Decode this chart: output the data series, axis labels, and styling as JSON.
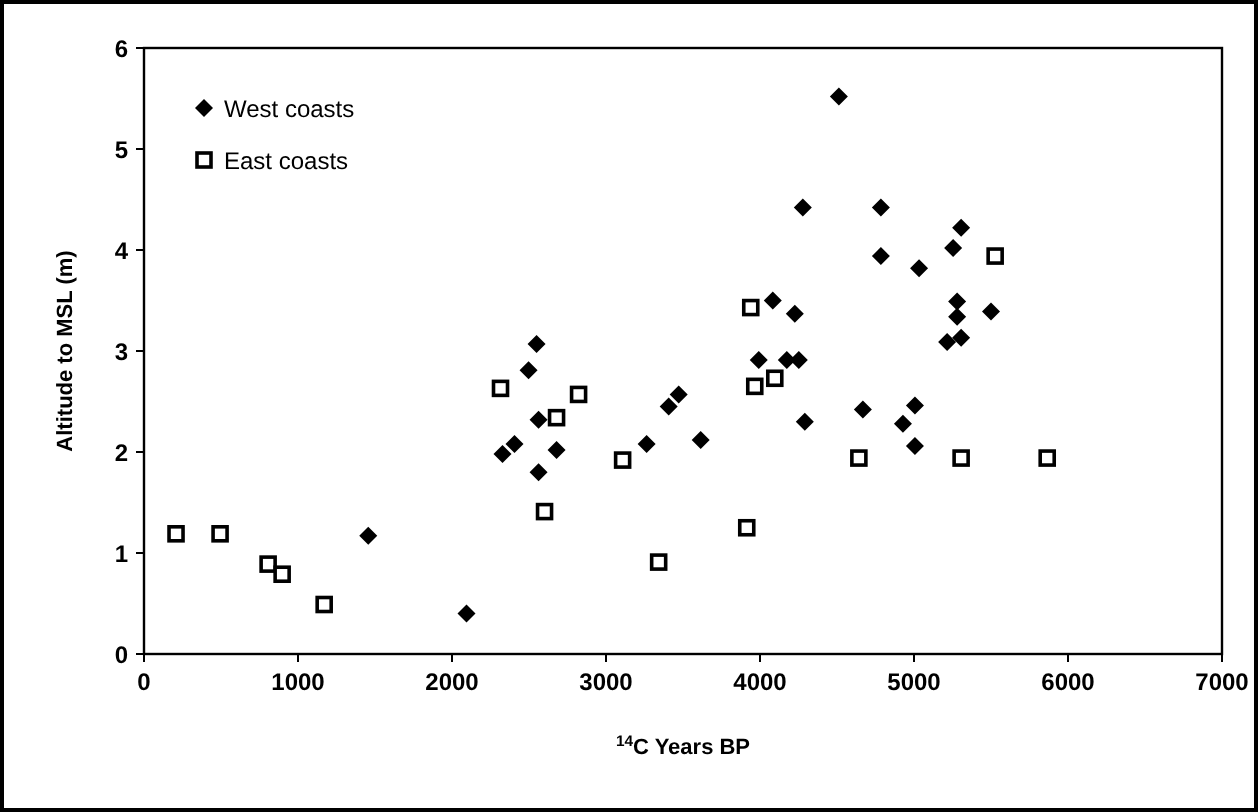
{
  "chart_data": {
    "type": "scatter",
    "xlabel": "$^{14}$C Years BP",
    "ylabel": "Altitude to MSL (m)",
    "xlim": [
      0,
      7000
    ],
    "ylim": [
      0,
      6
    ],
    "xticks": [
      0,
      1000,
      2000,
      3000,
      4000,
      5000,
      6000,
      7000
    ],
    "yticks": [
      0,
      1,
      2,
      3,
      4,
      5,
      6
    ],
    "grid": false,
    "legend": "top left",
    "series": [
      {
        "name": "West coasts",
        "color": "#000000",
        "marker": "diamond",
        "x": [
          1456,
          2094,
          2328,
          2406,
          2497,
          2549,
          2562,
          2679,
          2562,
          3264,
          3407,
          3472,
          3615,
          3992,
          4083,
          4226,
          4174,
          4252,
          4291,
          4278,
          4512,
          4668,
          4785,
          4785,
          4928,
          5006,
          5006,
          5033,
          5254,
          5306,
          5280,
          5280,
          5500,
          5215,
          5306
        ],
        "values": [
          1.17,
          0.4,
          1.98,
          2.08,
          2.81,
          3.07,
          2.32,
          2.02,
          1.8,
          2.08,
          2.45,
          2.57,
          2.12,
          2.91,
          3.5,
          3.37,
          2.91,
          2.91,
          2.3,
          4.42,
          5.52,
          2.42,
          4.42,
          3.94,
          2.28,
          2.46,
          2.06,
          3.82,
          4.02,
          4.22,
          3.49,
          3.34,
          3.39,
          3.09,
          3.13
        ]
      },
      {
        "name": "East coasts",
        "color": "#000000",
        "marker": "square",
        "x": [
          208,
          494,
          806,
          897,
          1170,
          2315,
          2822,
          2679,
          2601,
          3108,
          3342,
          3914,
          3940,
          3966,
          4096,
          4642,
          5527,
          5306,
          5865
        ],
        "values": [
          1.19,
          1.19,
          0.89,
          0.79,
          0.49,
          2.63,
          2.57,
          2.34,
          1.41,
          1.92,
          0.91,
          1.25,
          3.43,
          2.65,
          2.73,
          1.94,
          3.94,
          1.94,
          1.94
        ]
      }
    ]
  }
}
